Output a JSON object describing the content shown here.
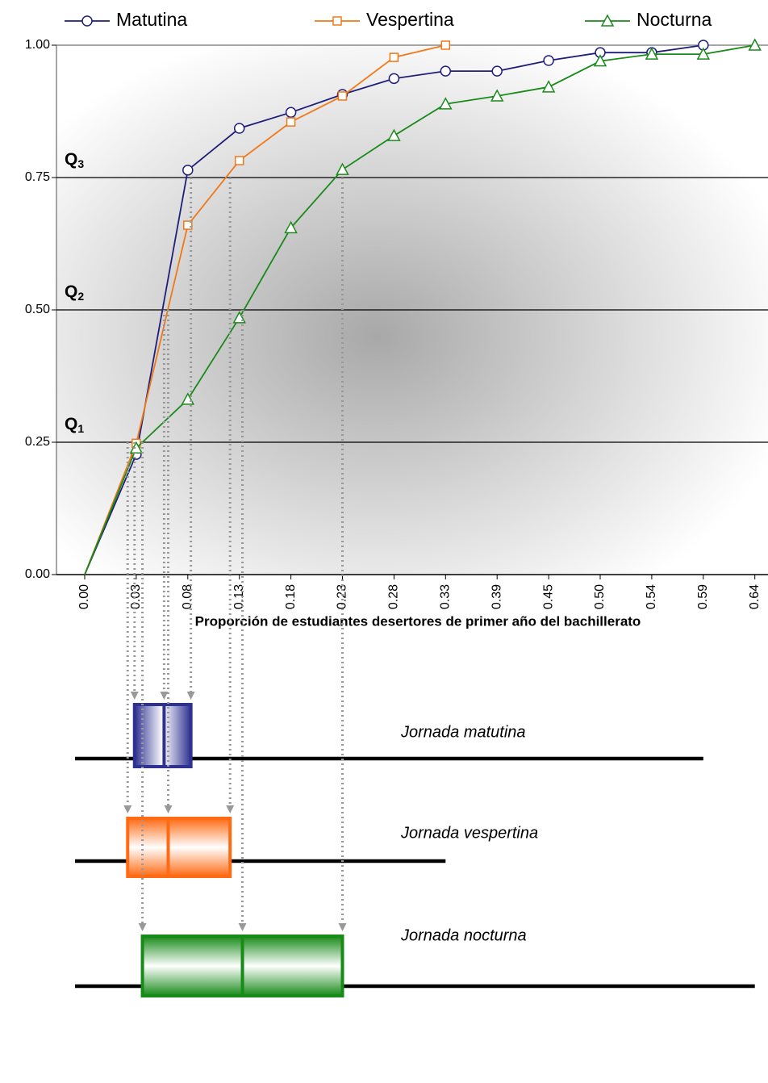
{
  "chart_data": {
    "type": "line",
    "xlabel": "Proporción de estudiantes desertores de primer año del bachillerato",
    "categories": [
      "0.00",
      "0.03",
      "0.08",
      "0.13",
      "0.18",
      "0.23",
      "0.28",
      "0.33",
      "0.39",
      "0.45",
      "0.50",
      "0.54",
      "0.59",
      "0.64"
    ],
    "ylim": [
      0,
      1
    ],
    "yticks": [
      {
        "value": 0,
        "label": "0.00"
      },
      {
        "value": 0.25,
        "label": "0.25"
      },
      {
        "value": 0.5,
        "label": "0.50"
      },
      {
        "value": 0.75,
        "label": "0.75"
      },
      {
        "value": 1,
        "label": "1.00"
      }
    ],
    "series": [
      {
        "name": "Matutina",
        "color": "#1f1f7a",
        "marker": "circle",
        "values": [
          0,
          0.227,
          0.764,
          0.843,
          0.873,
          0.907,
          0.937,
          0.951,
          0.951,
          0.971,
          0.986,
          0.986,
          1.0,
          null
        ]
      },
      {
        "name": "Vespertina",
        "color": "#f07818",
        "marker": "square",
        "values": [
          0,
          0.248,
          0.66,
          0.782,
          0.855,
          0.904,
          0.977,
          1.0,
          null,
          null,
          null,
          null,
          null,
          null
        ]
      },
      {
        "name": "Nocturna",
        "color": "#1a8a1a",
        "marker": "triangle",
        "values": [
          0,
          0.239,
          0.331,
          0.485,
          0.655,
          0.765,
          0.829,
          0.889,
          0.904,
          0.921,
          0.97,
          0.983,
          0.983,
          1.0
        ]
      }
    ],
    "quartiles": [
      {
        "label": "Q",
        "sub": "1",
        "value": 0.25
      },
      {
        "label": "Q",
        "sub": "2",
        "value": 0.5
      },
      {
        "label": "Q",
        "sub": "3",
        "value": 0.75
      }
    ],
    "boxes": [
      {
        "label": "Jornada matutina",
        "color": "#2e3192",
        "min": 0,
        "q1": 0.029,
        "median": 0.057,
        "q3": 0.083,
        "max": 0.59
      },
      {
        "label": "Jornada vespertina",
        "color": "#ff6a13",
        "min": 0,
        "q1": 0.025,
        "median": 0.061,
        "q3": 0.121,
        "max": 0.33
      },
      {
        "label": "Jornada nocturna",
        "color": "#178a17",
        "min": 0,
        "q1": 0.036,
        "median": 0.133,
        "q3": 0.23,
        "max": 0.64
      }
    ]
  }
}
